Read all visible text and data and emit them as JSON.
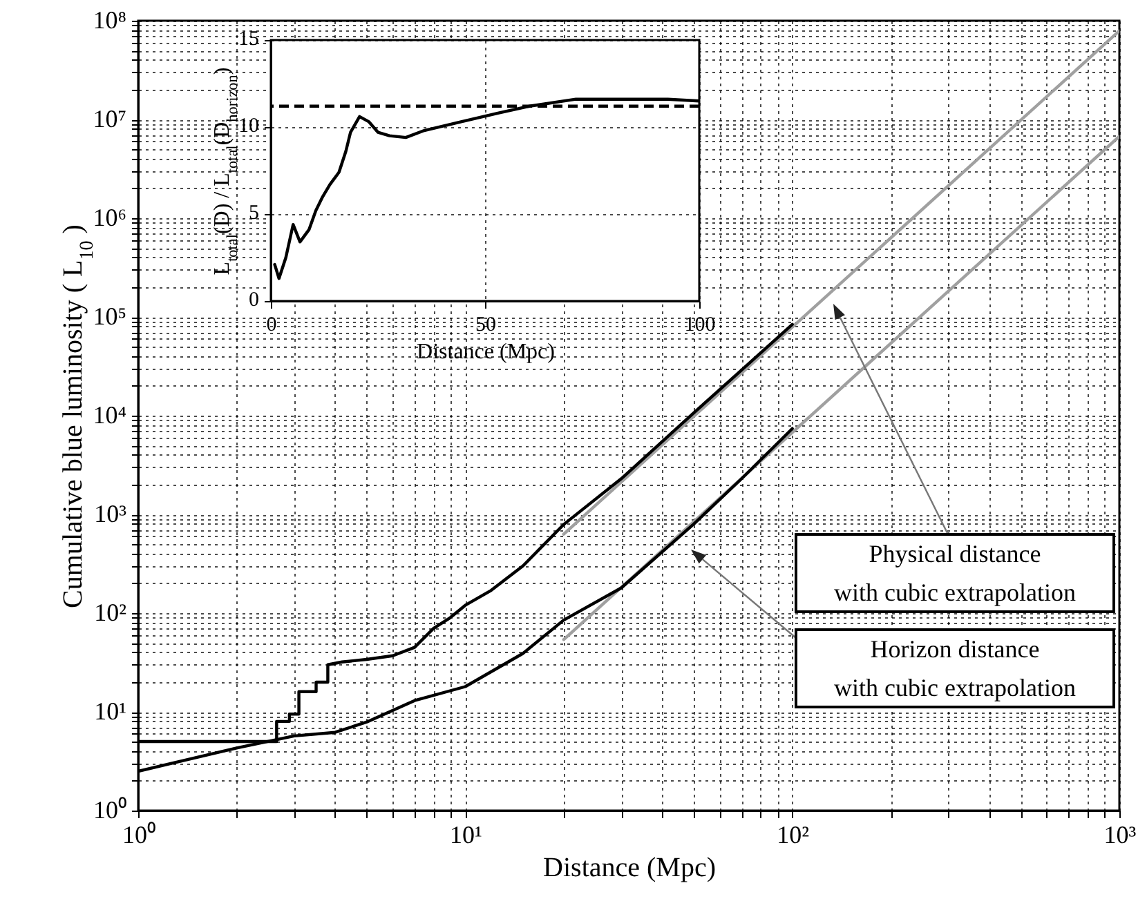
{
  "chart_data": [
    {
      "type": "line",
      "xlabel": "Distance (Mpc)",
      "ylabel": "Cumulative blue luminosity ( L$_{10}$ )",
      "log": "xy",
      "grid": true,
      "xlim": [
        1,
        1000
      ],
      "ylim": [
        1,
        100000000
      ],
      "xticks": [
        {
          "value": 1,
          "label": "10⁰"
        },
        {
          "value": 2,
          "label": null
        },
        {
          "value": 3,
          "label": null
        },
        {
          "value": 4,
          "label": null
        },
        {
          "value": 5,
          "label": null
        },
        {
          "value": 6,
          "label": null
        },
        {
          "value": 7,
          "label": null
        },
        {
          "value": 8,
          "label": null
        },
        {
          "value": 9,
          "label": null
        },
        {
          "value": 10,
          "label": "10¹"
        },
        {
          "value": 20,
          "label": null
        },
        {
          "value": 30,
          "label": null
        },
        {
          "value": 40,
          "label": null
        },
        {
          "value": 50,
          "label": null
        },
        {
          "value": 60,
          "label": null
        },
        {
          "value": 70,
          "label": null
        },
        {
          "value": 80,
          "label": null
        },
        {
          "value": 90,
          "label": null
        },
        {
          "value": 100,
          "label": "10²"
        },
        {
          "value": 200,
          "label": null
        },
        {
          "value": 300,
          "label": null
        },
        {
          "value": 400,
          "label": null
        },
        {
          "value": 500,
          "label": null
        },
        {
          "value": 600,
          "label": null
        },
        {
          "value": 700,
          "label": null
        },
        {
          "value": 800,
          "label": null
        },
        {
          "value": 900,
          "label": null
        },
        {
          "value": 1000,
          "label": "10³"
        }
      ],
      "yticks": [
        {
          "value": 1,
          "label": "10⁰"
        },
        {
          "value": 2,
          "label": null
        },
        {
          "value": 3,
          "label": null
        },
        {
          "value": 4,
          "label": null
        },
        {
          "value": 5,
          "label": null
        },
        {
          "value": 6,
          "label": null
        },
        {
          "value": 7,
          "label": null
        },
        {
          "value": 8,
          "label": null
        },
        {
          "value": 9,
          "label": null
        },
        {
          "value": 10,
          "label": "10¹"
        },
        {
          "value": 20,
          "label": null
        },
        {
          "value": 30,
          "label": null
        },
        {
          "value": 40,
          "label": null
        },
        {
          "value": 50,
          "label": null
        },
        {
          "value": 60,
          "label": null
        },
        {
          "value": 70,
          "label": null
        },
        {
          "value": 80,
          "label": null
        },
        {
          "value": 90,
          "label": null
        },
        {
          "value": 100,
          "label": "10²"
        },
        {
          "value": 200,
          "label": null
        },
        {
          "value": 300,
          "label": null
        },
        {
          "value": 400,
          "label": null
        },
        {
          "value": 500,
          "label": null
        },
        {
          "value": 600,
          "label": null
        },
        {
          "value": 700,
          "label": null
        },
        {
          "value": 800,
          "label": null
        },
        {
          "value": 900,
          "label": null
        },
        {
          "value": 1000,
          "label": "10³"
        },
        {
          "value": 2000,
          "label": null
        },
        {
          "value": 3000,
          "label": null
        },
        {
          "value": 4000,
          "label": null
        },
        {
          "value": 5000,
          "label": null
        },
        {
          "value": 6000,
          "label": null
        },
        {
          "value": 7000,
          "label": null
        },
        {
          "value": 8000,
          "label": null
        },
        {
          "value": 9000,
          "label": null
        },
        {
          "value": 10000,
          "label": "10⁴"
        },
        {
          "value": 20000,
          "label": null
        },
        {
          "value": 30000,
          "label": null
        },
        {
          "value": 40000,
          "label": null
        },
        {
          "value": 50000,
          "label": null
        },
        {
          "value": 60000,
          "label": null
        },
        {
          "value": 70000,
          "label": null
        },
        {
          "value": 80000,
          "label": null
        },
        {
          "value": 90000,
          "label": null
        },
        {
          "value": 100000,
          "label": "10⁵"
        },
        {
          "value": 200000,
          "label": null
        },
        {
          "value": 300000,
          "label": null
        },
        {
          "value": 400000,
          "label": null
        },
        {
          "value": 500000,
          "label": null
        },
        {
          "value": 600000,
          "label": null
        },
        {
          "value": 700000,
          "label": null
        },
        {
          "value": 800000,
          "label": null
        },
        {
          "value": 900000,
          "label": null
        },
        {
          "value": 1000000,
          "label": "10⁶"
        },
        {
          "value": 2000000,
          "label": null
        },
        {
          "value": 3000000,
          "label": null
        },
        {
          "value": 4000000,
          "label": null
        },
        {
          "value": 5000000,
          "label": null
        },
        {
          "value": 6000000,
          "label": null
        },
        {
          "value": 7000000,
          "label": null
        },
        {
          "value": 8000000,
          "label": null
        },
        {
          "value": 9000000,
          "label": null
        },
        {
          "value": 10000000,
          "label": "10⁷"
        },
        {
          "value": 20000000,
          "label": null
        },
        {
          "value": 30000000,
          "label": null
        },
        {
          "value": 40000000,
          "label": null
        },
        {
          "value": 50000000,
          "label": null
        },
        {
          "value": 60000000,
          "label": null
        },
        {
          "value": 70000000,
          "label": null
        },
        {
          "value": 80000000,
          "label": null
        },
        {
          "value": 90000000,
          "label": null
        },
        {
          "value": 100000000,
          "label": "10⁸"
        }
      ],
      "series": [
        {
          "color": "#a0a0a0",
          "x": [
            20,
            1000
          ],
          "values": [
            630,
            79000000
          ]
        },
        {
          "color": "#a0a0a0",
          "x": [
            20,
            1000
          ],
          "values": [
            54,
            6750000
          ]
        },
        {
          "color": "#000000",
          "x": [
            1,
            2.65,
            2.65,
            2.9,
            2.9,
            3.1,
            3.1,
            3.5,
            3.5,
            3.8,
            3.8,
            4.2,
            5,
            6,
            7,
            8,
            9,
            10,
            12,
            15,
            20,
            30,
            50,
            70,
            100
          ],
          "values": [
            5,
            5,
            8,
            8,
            9.5,
            9.5,
            16,
            16,
            20,
            20,
            30,
            32,
            34,
            37,
            45,
            70,
            90,
            120,
            170,
            300,
            790,
            2300,
            10700,
            29000,
            84000
          ]
        },
        {
          "color": "#000000",
          "x": [
            1,
            2,
            3,
            4,
            5,
            7,
            10,
            15,
            20,
            30,
            50,
            70,
            100
          ],
          "values": [
            2.5,
            4.3,
            5.7,
            6.2,
            7.9,
            13,
            18,
            39,
            85,
            180,
            800,
            2300,
            7400
          ]
        }
      ],
      "annotations": [
        "Physical distance\nwith cubic extrapolation",
        "Horizon distance\nwith cubic extrapolation"
      ]
    },
    {
      "type": "line",
      "xlabel": "Distance (Mpc)",
      "ylabel": "L$_{total}$(D) / L$_{total}$(D$_{horizon}$)",
      "grid": true,
      "xlim": [
        0,
        100
      ],
      "ylim": [
        0,
        15
      ],
      "xticks": [
        0,
        50,
        100
      ],
      "yticks": [
        0,
        5,
        10,
        15
      ],
      "series": [
        {
          "color": "#000000",
          "x": [
            0.9,
            1.9,
            3.5,
            5.2,
            6.8,
            8.9,
            10.5,
            12.1,
            13.8,
            15.9,
            17.5,
            18.6,
            20.7,
            22.9,
            25,
            27.7,
            31.5,
            35.8,
            44.4,
            53,
            60.4,
            71.2,
            82,
            92.7,
            100
          ],
          "values": [
            2.1,
            1.3,
            2.5,
            4.4,
            3.4,
            4.1,
            5.2,
            6.0,
            6.7,
            7.4,
            8.6,
            9.7,
            10.6,
            10.3,
            9.7,
            9.5,
            9.4,
            9.8,
            10.3,
            10.8,
            11.2,
            11.6,
            11.6,
            11.6,
            11.5
          ]
        }
      ],
      "ref_lines": [
        {
          "axis": "y",
          "value": 11.2,
          "color": "#000000",
          "line_style": "dashed"
        }
      ]
    }
  ]
}
